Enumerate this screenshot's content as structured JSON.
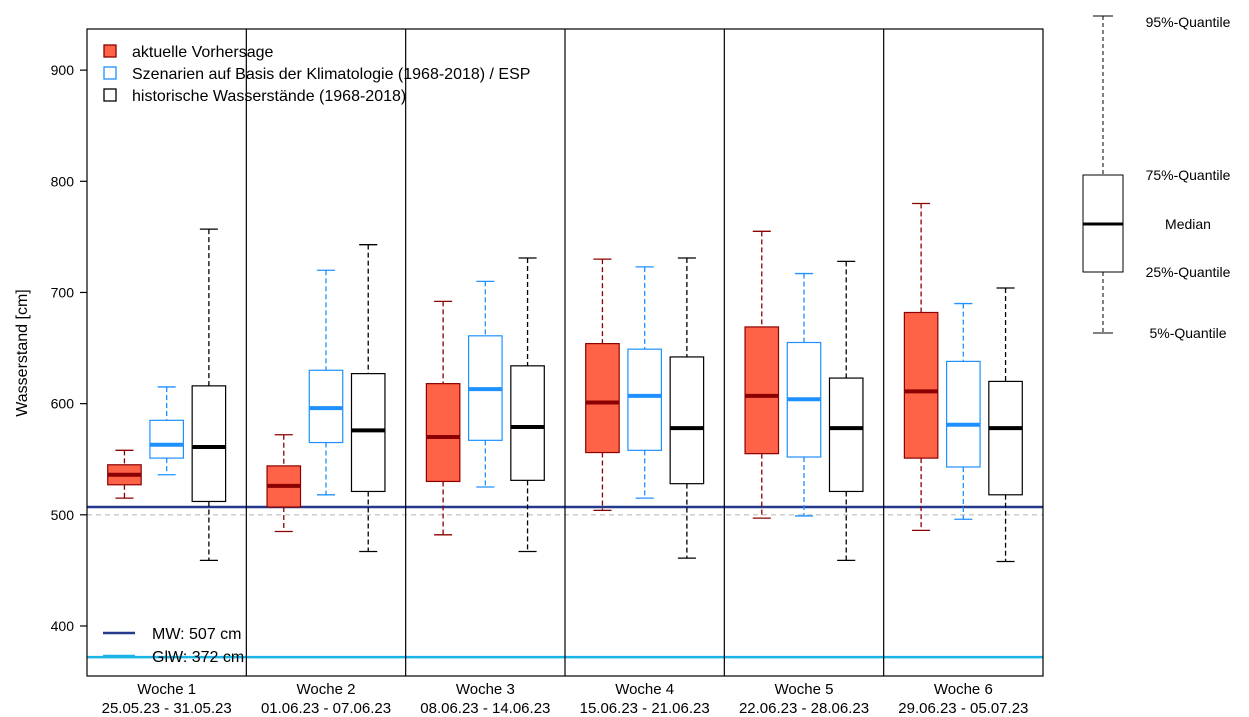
{
  "chart_data": {
    "type": "boxplot",
    "ylabel": "Wasserstand [cm]",
    "ylim": [
      355,
      937
    ],
    "yticks": [
      400,
      500,
      600,
      700,
      800,
      900
    ],
    "categories": [
      {
        "name": "Woche 1",
        "dates": "25.05.23 - 31.05.23"
      },
      {
        "name": "Woche 2",
        "dates": "01.06.23 - 07.06.23"
      },
      {
        "name": "Woche 3",
        "dates": "08.06.23 - 14.06.23"
      },
      {
        "name": "Woche 4",
        "dates": "15.06.23 - 21.06.23"
      },
      {
        "name": "Woche 5",
        "dates": "22.06.23 - 28.06.23"
      },
      {
        "name": "Woche 6",
        "dates": "29.06.23 - 05.07.23"
      }
    ],
    "series": [
      {
        "name": "aktuelle Vorhersage",
        "fill": "#ff6347",
        "stroke": "#8b0000",
        "median_color": "#8b0000",
        "boxes": [
          {
            "q05": 515,
            "q25": 527,
            "median": 536,
            "q75": 545,
            "q95": 558
          },
          {
            "q05": 485,
            "q25": 507,
            "median": 526,
            "q75": 544,
            "q95": 572
          },
          {
            "q05": 482,
            "q25": 530,
            "median": 570,
            "q75": 618,
            "q95": 692
          },
          {
            "q05": 504,
            "q25": 556,
            "median": 601,
            "q75": 654,
            "q95": 730
          },
          {
            "q05": 497,
            "q25": 555,
            "median": 607,
            "q75": 669,
            "q95": 755
          },
          {
            "q05": 486,
            "q25": 551,
            "median": 611,
            "q75": 682,
            "q95": 780
          }
        ]
      },
      {
        "name": "Szenarien auf Basis der Klimatologie (1968-2018) / ESP",
        "fill": "#ffffff",
        "stroke": "#1e90ff",
        "median_color": "#1e90ff",
        "boxes": [
          {
            "q05": 536,
            "q25": 551,
            "median": 563,
            "q75": 585,
            "q95": 615
          },
          {
            "q05": 518,
            "q25": 565,
            "median": 596,
            "q75": 630,
            "q95": 720
          },
          {
            "q05": 525,
            "q25": 567,
            "median": 613,
            "q75": 661,
            "q95": 710
          },
          {
            "q05": 515,
            "q25": 558,
            "median": 607,
            "q75": 649,
            "q95": 723
          },
          {
            "q05": 499,
            "q25": 552,
            "median": 604,
            "q75": 655,
            "q95": 717
          },
          {
            "q05": 496,
            "q25": 543,
            "median": 581,
            "q75": 638,
            "q95": 690
          }
        ]
      },
      {
        "name": "historische Wasserstände (1968-2018)",
        "fill": "#ffffff",
        "stroke": "#000000",
        "median_color": "#000000",
        "boxes": [
          {
            "q05": 459,
            "q25": 512,
            "median": 561,
            "q75": 616,
            "q95": 757
          },
          {
            "q05": 467,
            "q25": 521,
            "median": 576,
            "q75": 627,
            "q95": 743
          },
          {
            "q05": 467,
            "q25": 531,
            "median": 579,
            "q75": 634,
            "q95": 731
          },
          {
            "q05": 461,
            "q25": 528,
            "median": 578,
            "q75": 642,
            "q95": 731
          },
          {
            "q05": 459,
            "q25": 521,
            "median": 578,
            "q75": 623,
            "q95": 728
          },
          {
            "q05": 458,
            "q25": 518,
            "median": 578,
            "q75": 620,
            "q95": 704
          }
        ]
      }
    ],
    "reference_lines": [
      {
        "label": "MW: 507 cm",
        "value": 507,
        "color": "#253a8e"
      },
      {
        "label": "GlW: 372 cm",
        "value": 372,
        "color": "#1ab4e6"
      }
    ],
    "dashed_line_value": 500,
    "key": {
      "q95": "95%-Quantile",
      "q75": "75%-Quantile",
      "median": "Median",
      "q25": "25%-Quantile",
      "q05": "5%-Quantile"
    }
  }
}
